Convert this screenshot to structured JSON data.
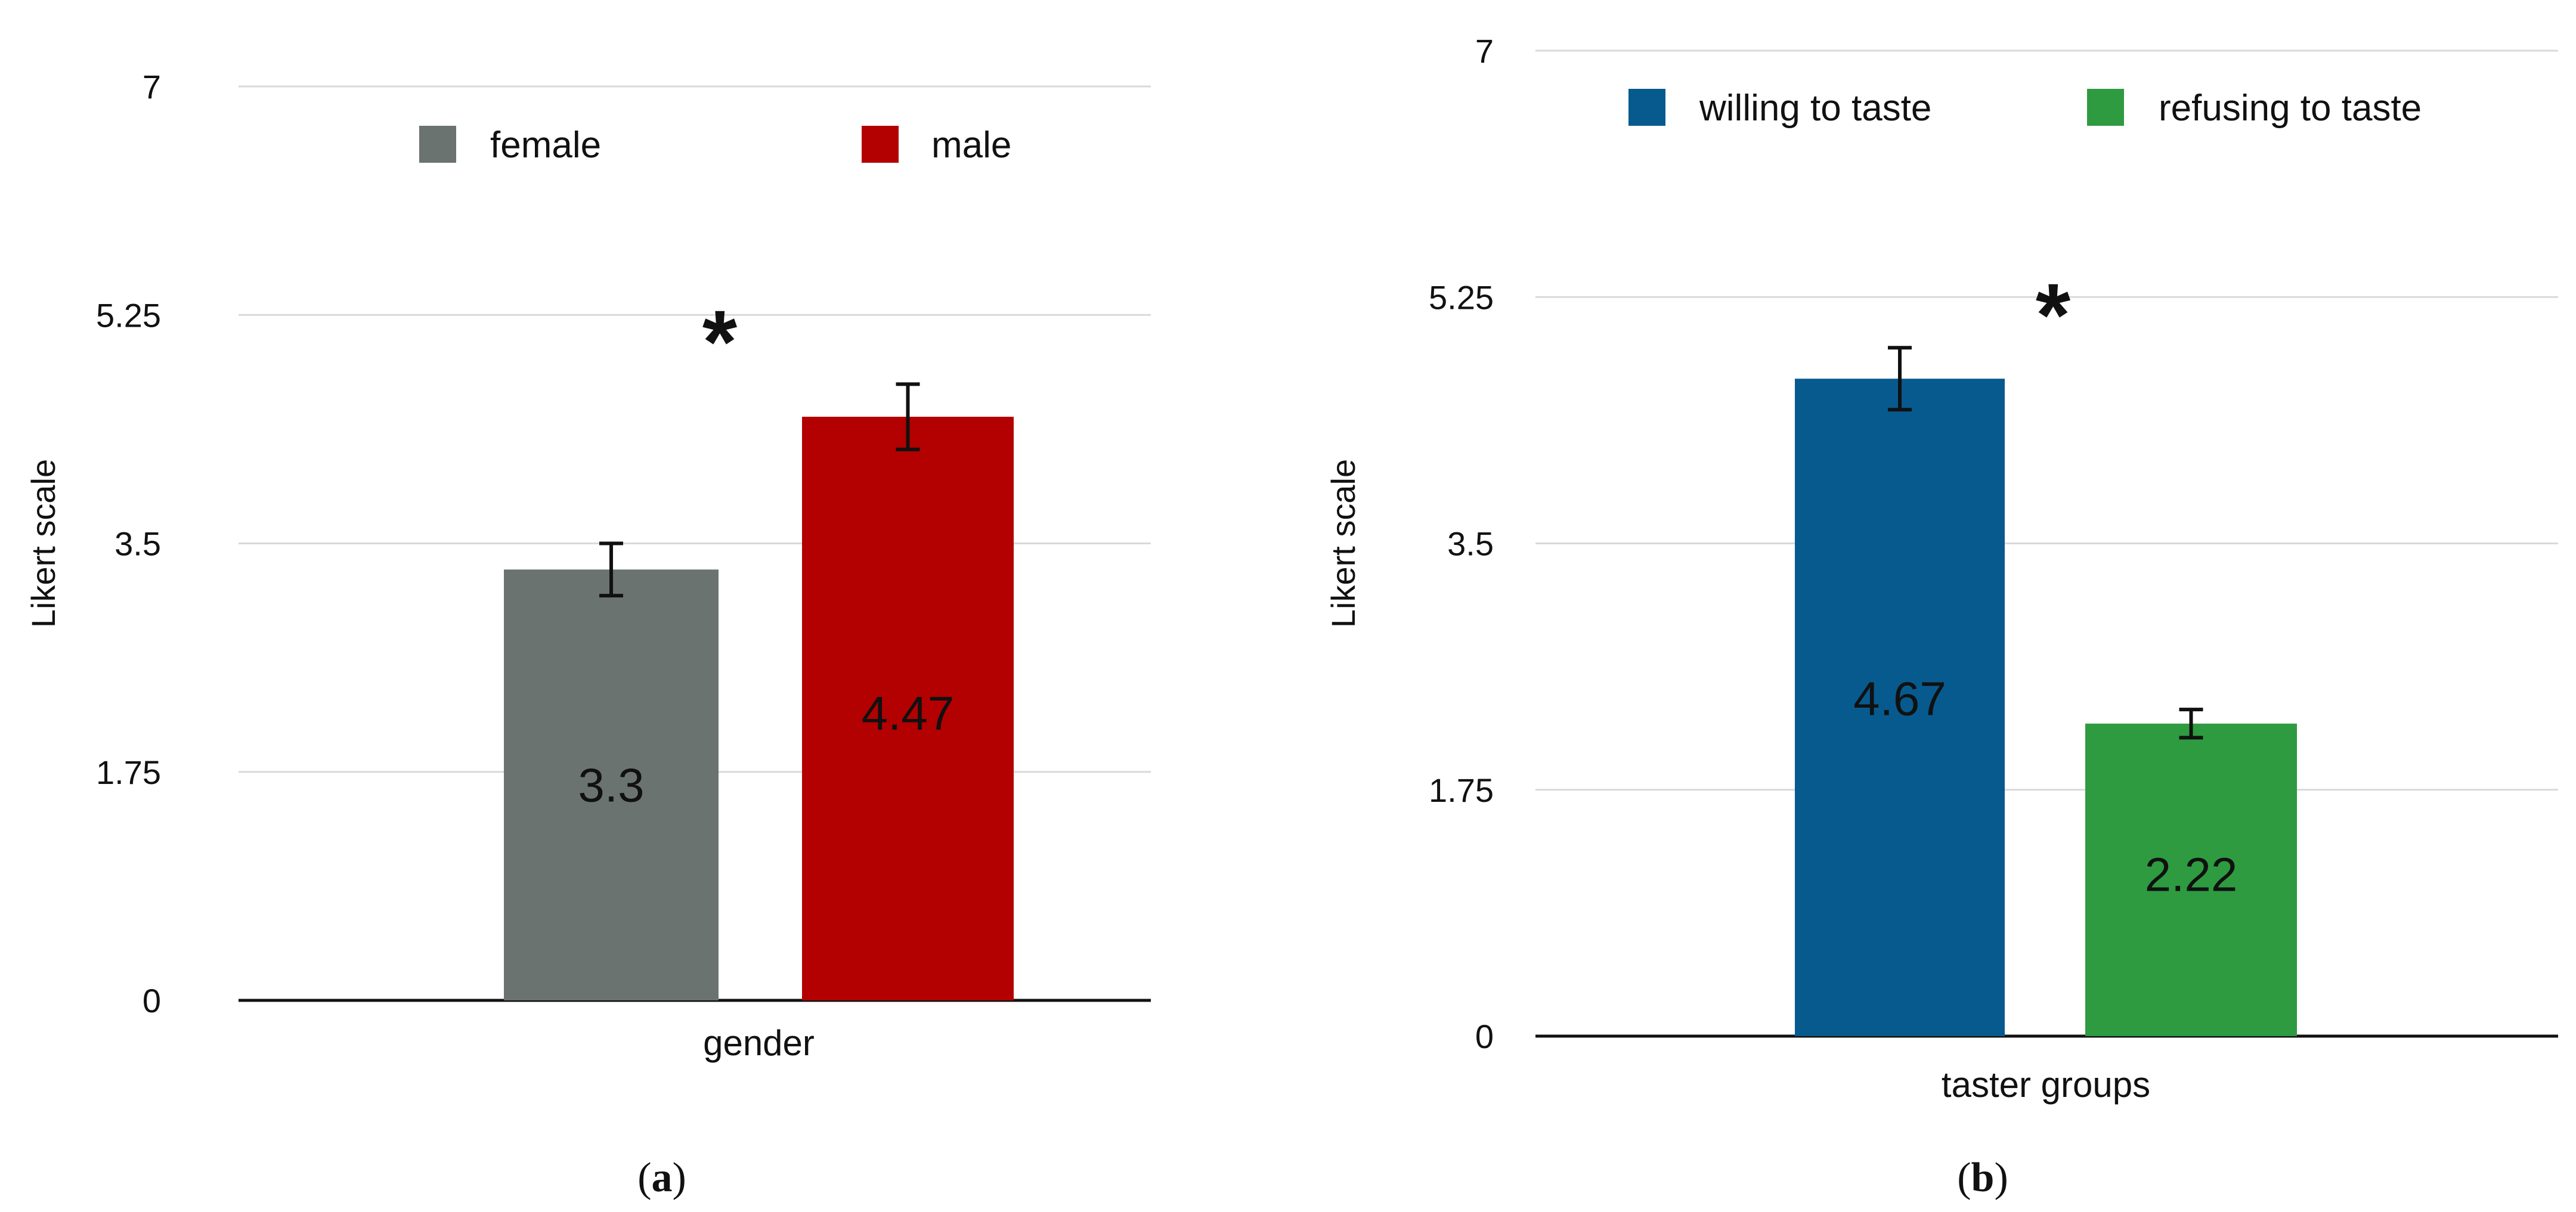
{
  "chart_data": [
    {
      "type": "bar",
      "panel": "a",
      "caption_letter": "a",
      "xlabel": "gender",
      "ylabel": "Likert scale",
      "ylim": [
        0,
        7
      ],
      "yticks": [
        "0",
        "1.75",
        "3.5",
        "5.25",
        "7"
      ],
      "ytick_values": [
        0,
        1.75,
        3.5,
        5.25,
        7
      ],
      "grid": true,
      "legend_position": "top",
      "significance": "*",
      "series": [
        {
          "name": "female",
          "value": 3.3,
          "label": "3.3",
          "error": 0.2,
          "color": "#6b7370"
        },
        {
          "name": "male",
          "value": 4.47,
          "label": "4.47",
          "error": 0.25,
          "color": "#b30000"
        }
      ]
    },
    {
      "type": "bar",
      "panel": "b",
      "caption_letter": "b",
      "xlabel": "taster groups",
      "ylabel": "Likert scale",
      "ylim": [
        0,
        7
      ],
      "yticks": [
        "0",
        "1.75",
        "3.5",
        "5.25",
        "7"
      ],
      "ytick_values": [
        0,
        1.75,
        3.5,
        5.25,
        7
      ],
      "grid": true,
      "legend_position": "top",
      "significance": "*",
      "series": [
        {
          "name": "willing to taste",
          "value": 4.67,
          "label": "4.67",
          "error": 0.22,
          "color": "#075a8e"
        },
        {
          "name": "refusing to taste",
          "value": 2.22,
          "label": "2.22",
          "error": 0.1,
          "color": "#2e9b40"
        }
      ]
    }
  ]
}
